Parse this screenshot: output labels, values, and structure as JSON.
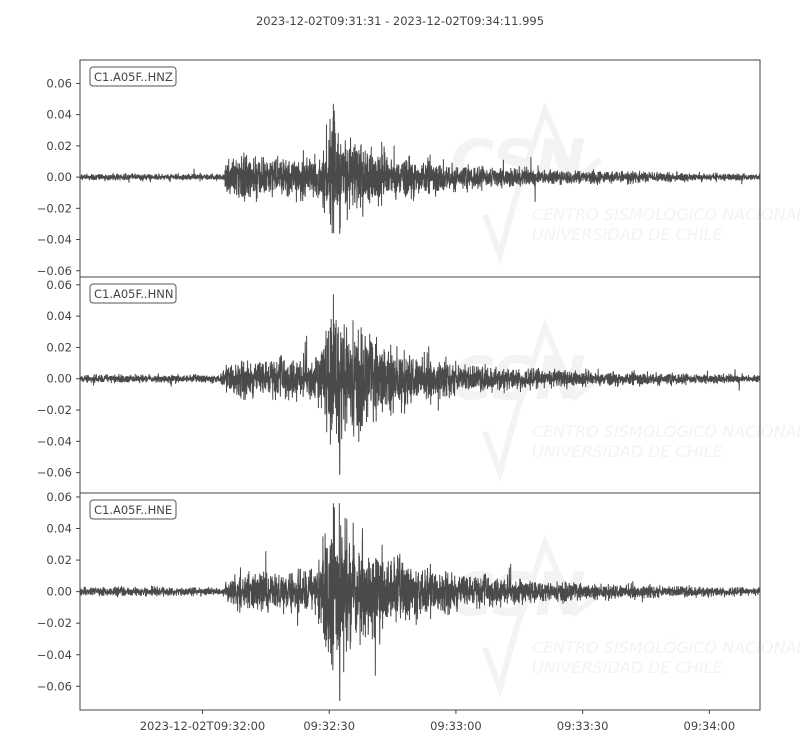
{
  "chart_data": {
    "type": "line",
    "title": "2023-12-02T09:31:31  -  2023-12-02T09:34:11.995",
    "xlim": [
      "09:31:31",
      "09:34:11.995"
    ],
    "x_ticks": [
      {
        "time": "09:32:00",
        "label": "2023-12-02T09:32:00"
      },
      {
        "time": "09:32:30",
        "label": "09:32:30"
      },
      {
        "time": "09:33:00",
        "label": "09:33:00"
      },
      {
        "time": "09:33:30",
        "label": "09:33:30"
      },
      {
        "time": "09:34:00",
        "label": "09:34:00"
      }
    ],
    "grid": false,
    "trace_color": "#4a4a4a",
    "watermark": {
      "logo": "CSN",
      "line1": "CENTRO SISMOLÓGICO NACIONAL",
      "line2": "UNIVERSIDAD DE CHILE"
    },
    "panels": [
      {
        "label": "C1.A05F..HNZ",
        "ylim": [
          -0.064,
          0.075
        ],
        "y_ticks": [
          "0.06",
          "0.04",
          "0.02",
          "0.00",
          "−0.02",
          "−0.04",
          "−0.06"
        ],
        "y_tick_values": [
          0.06,
          0.04,
          0.02,
          0,
          -0.02,
          -0.04,
          -0.06
        ],
        "envelope": [
          [
            "09:31:31",
            0.0012
          ],
          [
            "09:32:05",
            0.0012
          ],
          [
            "09:32:06",
            0.008
          ],
          [
            "09:32:28",
            0.008
          ],
          [
            "09:32:31",
            0.024
          ],
          [
            "09:32:35",
            0.014
          ],
          [
            "09:32:45",
            0.009
          ],
          [
            "09:33:00",
            0.005
          ],
          [
            "09:33:30",
            0.0025
          ],
          [
            "09:34:11",
            0.0012
          ]
        ],
        "max": 0.047,
        "min": -0.036
      },
      {
        "label": "C1.A05F..HNN",
        "ylim": [
          -0.073,
          0.065
        ],
        "y_ticks": [
          "0.06",
          "0.04",
          "0.02",
          "0.00",
          "−0.02",
          "−0.04",
          "−0.06"
        ],
        "y_tick_values": [
          0.06,
          0.04,
          0.02,
          0,
          -0.02,
          -0.04,
          -0.06
        ],
        "envelope": [
          [
            "09:31:31",
            0.0015
          ],
          [
            "09:32:04",
            0.0015
          ],
          [
            "09:32:07",
            0.007
          ],
          [
            "09:32:27",
            0.008
          ],
          [
            "09:32:31",
            0.03
          ],
          [
            "09:32:38",
            0.017
          ],
          [
            "09:32:50",
            0.009
          ],
          [
            "09:33:05",
            0.005
          ],
          [
            "09:33:30",
            0.003
          ],
          [
            "09:34:11",
            0.0015
          ]
        ],
        "max": 0.054,
        "min": -0.061
      },
      {
        "label": "C1.A05F..HNE",
        "ylim": [
          -0.075,
          0.0625
        ],
        "y_ticks": [
          "0.06",
          "0.04",
          "0.02",
          "0.00",
          "−0.02",
          "−0.04",
          "−0.06"
        ],
        "y_tick_values": [
          0.06,
          0.04,
          0.02,
          0,
          -0.02,
          -0.04,
          -0.06
        ],
        "envelope": [
          [
            "09:31:31",
            0.0018
          ],
          [
            "09:32:05",
            0.0015
          ],
          [
            "09:32:07",
            0.007
          ],
          [
            "09:32:27",
            0.008
          ],
          [
            "09:32:31",
            0.032
          ],
          [
            "09:32:38",
            0.018
          ],
          [
            "09:32:50",
            0.01
          ],
          [
            "09:33:05",
            0.006
          ],
          [
            "09:33:30",
            0.003
          ],
          [
            "09:34:11",
            0.0015
          ]
        ],
        "max": 0.056,
        "min": -0.069
      }
    ]
  }
}
